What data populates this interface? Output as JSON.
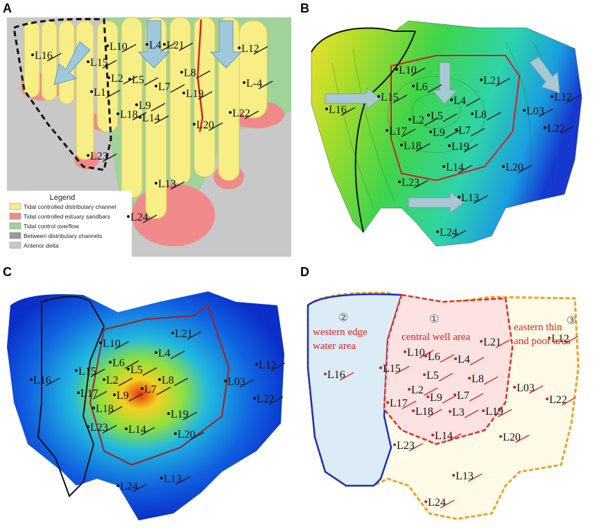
{
  "panels": [
    {
      "label": "A",
      "wells": [
        "L16",
        "L10",
        "L15",
        "L4",
        "L21",
        "L12",
        "L2",
        "L5",
        "L8",
        "L1",
        "L7",
        "L19",
        "L-4",
        "L9",
        "L18",
        "L14",
        "L22",
        "L20",
        "L23",
        "L13",
        "L24"
      ],
      "legend": {
        "title": "Legend",
        "items": [
          "Tidal controlled distributary channel",
          "Tidal controlled estuary sandbars",
          "Tidal control overflow",
          "Between distributary channels",
          "Anterior delta"
        ]
      }
    },
    {
      "label": "B",
      "wells": [
        "L10",
        "L6",
        "L21",
        "L12",
        "L16",
        "L15",
        "L4",
        "L5",
        "L8",
        "L03",
        "L2",
        "L17",
        "L9",
        "L7",
        "L22",
        "L18",
        "L19",
        "L14",
        "L20",
        "L23",
        "L13",
        "L24"
      ]
    },
    {
      "label": "C",
      "wells": [
        "L21",
        "L10",
        "L4",
        "L15",
        "L6",
        "L5",
        "L2",
        "L8",
        "L16",
        "L12",
        "L03",
        "L17",
        "L9",
        "L7",
        "L22",
        "L18",
        "L19",
        "L23",
        "L14",
        "L20",
        "L13",
        "L24"
      ]
    },
    {
      "label": "D",
      "wells": [
        "L10",
        "L6",
        "L21",
        "L12",
        "L15",
        "L4",
        "L16",
        "L5",
        "L8",
        "L03",
        "L2",
        "L9",
        "L7",
        "L17",
        "L22",
        "L18",
        "L3",
        "L19",
        "L14",
        "L20",
        "L23",
        "L13",
        "L24"
      ],
      "zones": [
        {
          "number": "②",
          "lines": [
            "western edge",
            "water area"
          ]
        },
        {
          "number": "①",
          "lines": [
            "central well area"
          ]
        },
        {
          "number": "③",
          "lines": [
            "eastern thin",
            "and poor area"
          ]
        }
      ]
    }
  ]
}
